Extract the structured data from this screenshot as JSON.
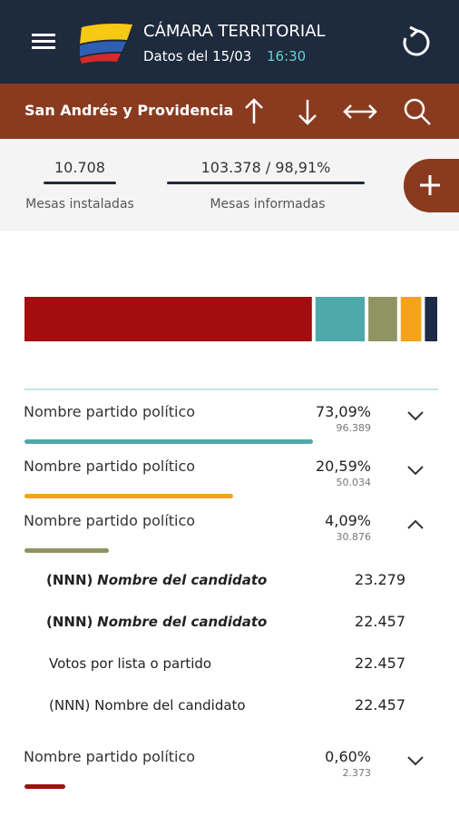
{
  "header": {
    "title": "CÁMARA TERRITORIAL",
    "subtitle": "Datos del 15/03",
    "time": "16:30"
  },
  "toolbar": {
    "region": "San Andrés y Providencia"
  },
  "stats": [
    {
      "value": "10.708",
      "label": "Mesas instaladas"
    },
    {
      "value": "103.378 / 98,91%",
      "label": "Mesas informadas"
    }
  ],
  "summary_bar": {
    "segments": [
      {
        "color": "#a30d0d",
        "value": 70
      },
      {
        "color": "#4fa8ab",
        "value": 12
      },
      {
        "color": "#8f9462",
        "value": 7
      },
      {
        "color": "#f5a31a",
        "value": 5
      },
      {
        "color": "#1d2a48",
        "value": 3
      }
    ]
  },
  "parties": [
    {
      "name": "Nombre partido político",
      "percent": "73,09%",
      "votes": "96.389",
      "color": "#4fa8ab",
      "expanded": false
    },
    {
      "name": "Nombre partido político",
      "percent": "20,59%",
      "votes": "50.034",
      "color": "#f5a31a",
      "expanded": false
    },
    {
      "name": "Nombre partido político",
      "percent": "4,09%",
      "votes": "30.876",
      "color": "#8f9462",
      "expanded": true,
      "candidates": [
        {
          "code": "(NNN)",
          "name": "Nombre del candidato",
          "votes": "23.279",
          "bold": true
        },
        {
          "code": "(NNN)",
          "name": "Nombre del candidato",
          "votes": "22.457",
          "bold": true
        },
        {
          "name": "Votos por lista o partido",
          "votes": "22.457",
          "bold": false
        },
        {
          "code": "(NNN)",
          "name": "Nombre del candidato",
          "votes": "22.457",
          "bold": false
        }
      ]
    },
    {
      "name": "Nombre partido político",
      "percent": "0,60%",
      "votes": "2.373",
      "color": "#a30d0d",
      "expanded": false
    }
  ]
}
